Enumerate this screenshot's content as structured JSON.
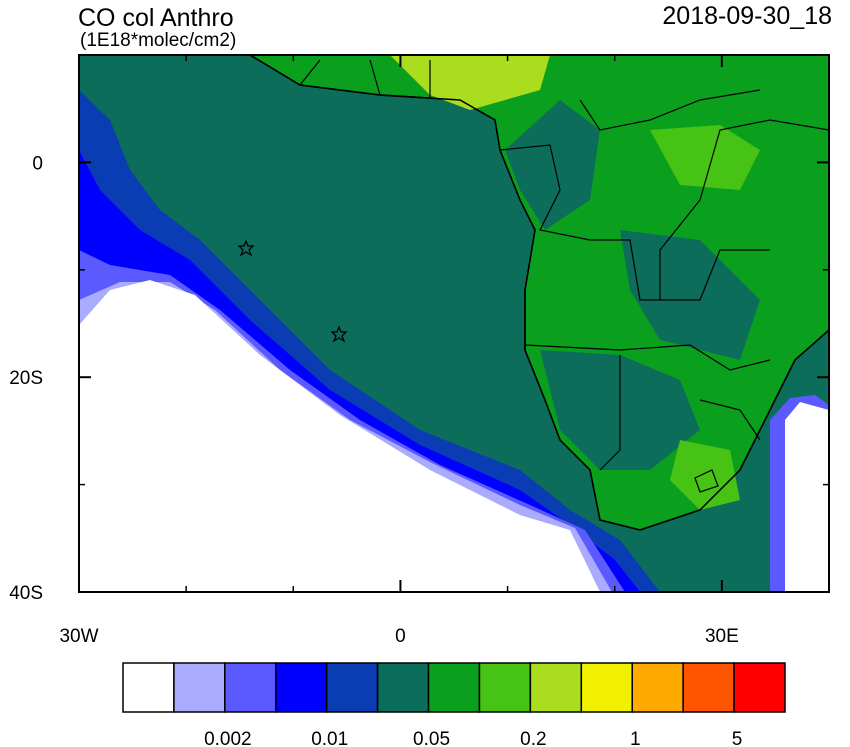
{
  "map": {
    "title": "CO col Anthro",
    "subtitle": "(1E18*molec/cm2)",
    "date": "2018-09-30_18",
    "xlim": [
      -30,
      40
    ],
    "ylim": [
      -40,
      10
    ],
    "xticks": [
      {
        "value": -30,
        "label": "30W"
      },
      0,
      {
        "value": 30,
        "label": "30E"
      }
    ],
    "yticks": [
      0,
      {
        "value": -20,
        "label": "20S"
      },
      {
        "value": -40,
        "label": "40S"
      }
    ],
    "xminorticks": [
      -20,
      -10,
      10,
      20,
      40
    ],
    "yminorticks": [
      10,
      -10,
      -30
    ],
    "colorbar": {
      "colors": [
        "#ffffff",
        "#aaaaff",
        "#5a5aff",
        "#0000ff",
        "#0a3cb4",
        "#0c6e5a",
        "#0aa01e",
        "#46c314",
        "#aadd1e",
        "#f0f000",
        "#ffaa00",
        "#ff5500",
        "#ff0000"
      ],
      "labels": [
        0.002,
        0.01,
        0.05,
        0.2,
        1,
        5
      ]
    }
  }
}
